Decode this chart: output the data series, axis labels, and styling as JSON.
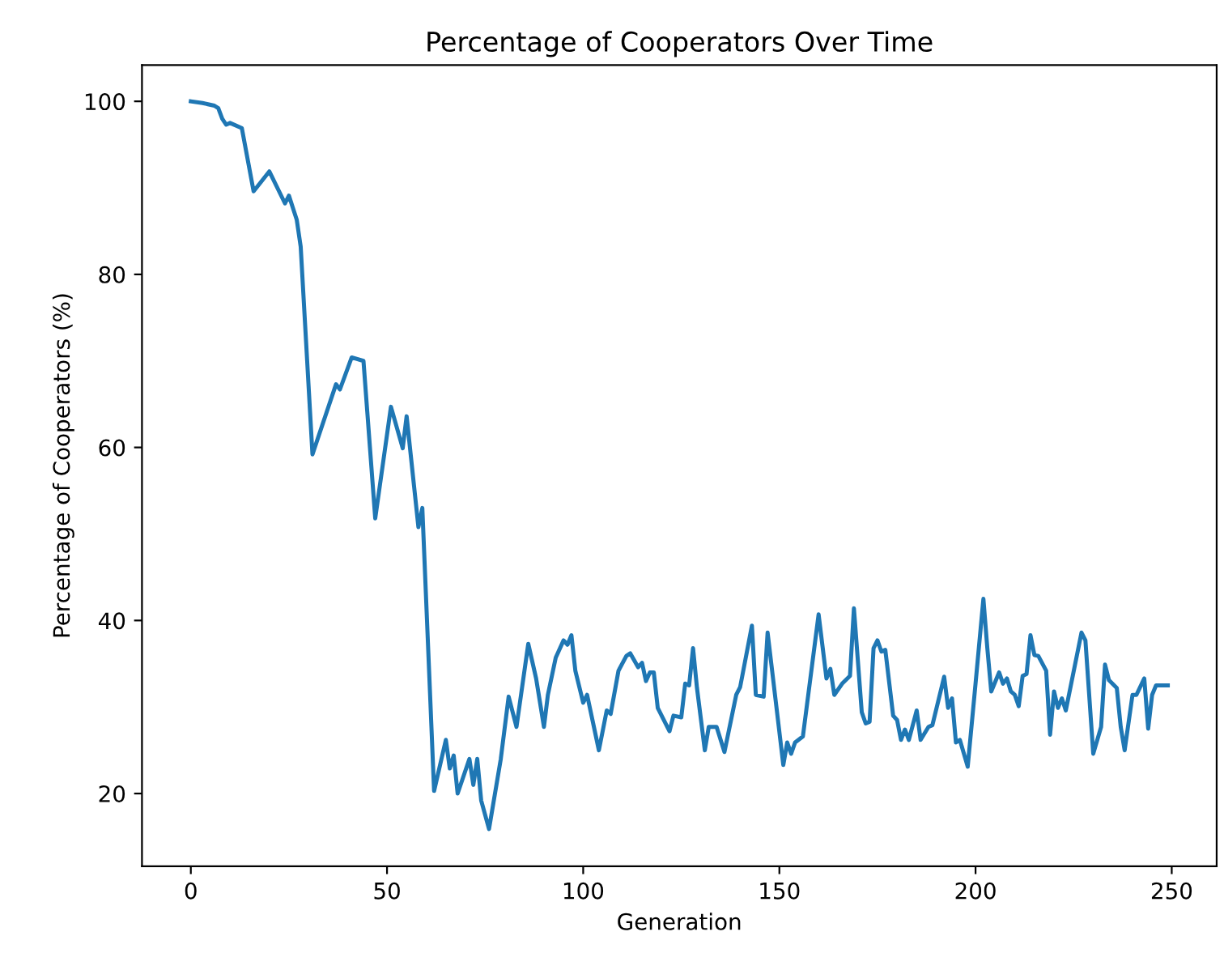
{
  "chart_data": {
    "type": "line",
    "title": "Percentage of Cooperators Over Time",
    "xlabel": "Generation",
    "ylabel": "Percentage of Cooperators (%)",
    "xlim": [
      -12.45,
      261.45
    ],
    "ylim": [
      11.6,
      104.2
    ],
    "xticks": [
      0,
      50,
      100,
      150,
      200,
      250
    ],
    "yticks": [
      20,
      40,
      60,
      80,
      100
    ],
    "grid": false,
    "legend": false,
    "series": [
      {
        "color": "#1f77b4",
        "x": [
          0,
          3,
          6,
          7,
          8,
          9,
          10,
          13,
          16,
          20,
          24,
          25,
          27,
          28,
          31,
          37,
          38,
          41,
          44,
          47,
          51,
          54,
          55,
          58,
          59,
          62,
          65,
          66,
          67,
          68,
          71,
          72,
          73,
          74,
          76,
          79,
          81,
          83,
          86,
          88,
          90,
          91,
          93,
          95,
          96,
          97,
          98,
          100,
          101,
          104,
          106,
          107,
          109,
          111,
          112,
          114,
          115,
          116,
          117,
          118,
          119,
          122,
          123,
          125,
          126,
          127,
          128,
          129,
          131,
          132,
          134,
          136,
          139,
          140,
          143,
          144,
          146,
          147,
          151,
          152,
          153,
          154,
          156,
          160,
          162,
          163,
          164,
          166,
          168,
          169,
          171,
          172,
          173,
          174,
          175,
          176,
          177,
          179,
          180,
          181,
          182,
          183,
          185,
          186,
          188,
          189,
          192,
          193,
          194,
          195,
          196,
          198,
          200,
          202,
          203,
          204,
          206,
          207,
          208,
          209,
          210,
          211,
          212,
          213,
          214,
          215,
          216,
          218,
          219,
          220,
          221,
          222,
          223,
          227,
          228,
          230,
          232,
          233,
          234,
          236,
          237,
          238,
          240,
          241,
          243,
          244,
          245,
          246,
          249
        ],
        "values": [
          100,
          99.8,
          99.5,
          99.2,
          98,
          97.3,
          97.5,
          96.9,
          89.6,
          91.9,
          88.2,
          89.1,
          86.3,
          83.2,
          59.2,
          67.3,
          66.7,
          70.4,
          70,
          51.8,
          64.7,
          59.9,
          63.6,
          50.8,
          53,
          20.3,
          26.2,
          22.9,
          24.4,
          20,
          24,
          21,
          24,
          19.2,
          15.9,
          24,
          31.2,
          27.7,
          37.3,
          33.3,
          27.7,
          31.4,
          35.7,
          37.7,
          37.2,
          38.3,
          34.2,
          30.5,
          31.4,
          25,
          29.6,
          29.2,
          34.2,
          35.9,
          36.2,
          34.6,
          35.1,
          33,
          34,
          34,
          29.9,
          27.2,
          29,
          28.8,
          32.7,
          32.5,
          36.8,
          32.2,
          25,
          27.7,
          27.7,
          24.8,
          31.4,
          32.3,
          39.4,
          31.4,
          31.2,
          38.6,
          23.3,
          25.9,
          24.6,
          25.9,
          26.6,
          40.7,
          33.3,
          34.4,
          31.4,
          32.7,
          33.6,
          41.4,
          29.4,
          28.1,
          28.3,
          36.8,
          37.7,
          36.4,
          36.6,
          29,
          28.5,
          26.2,
          27.4,
          26.2,
          29.6,
          26.2,
          27.7,
          27.9,
          33.5,
          29.9,
          31,
          25.9,
          26.2,
          23.1,
          32.7,
          42.5,
          36.8,
          31.8,
          34,
          32.7,
          33.3,
          31.8,
          31.4,
          30.1,
          33.6,
          33.8,
          38.3,
          36,
          35.9,
          34.2,
          26.8,
          31.8,
          29.9,
          31,
          29.6,
          38.6,
          37.7,
          24.6,
          27.7,
          34.9,
          33.1,
          32.2,
          27.7,
          25,
          31.4,
          31.4,
          33.3,
          27.5,
          31.4,
          32.5,
          32.5
        ]
      }
    ]
  }
}
